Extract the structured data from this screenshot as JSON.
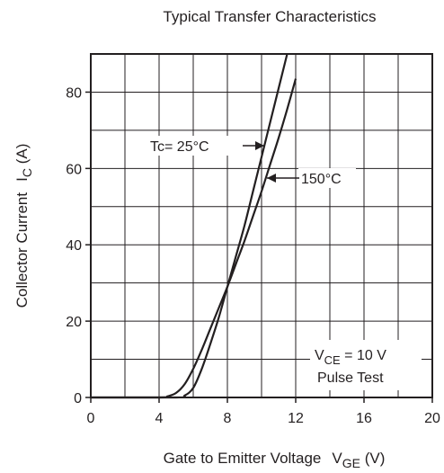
{
  "chart_data": {
    "type": "line",
    "title": "Typical Transfer Characteristics",
    "xlabel": {
      "main": "Gate to Emitter Voltage",
      "sym": "V",
      "sub": "GE",
      "unit": " (V)"
    },
    "ylabel": {
      "main": "Collector Current",
      "sym": "I",
      "sub": "C",
      "unit": " (A)"
    },
    "xlim": [
      0,
      20
    ],
    "ylim": [
      0,
      90
    ],
    "xticks": [
      0,
      4,
      8,
      12,
      16,
      20
    ],
    "yticks": [
      0,
      20,
      40,
      60,
      80
    ],
    "grid": true,
    "series": [
      {
        "name": "Tc= 25°C",
        "x": [
          5.0,
          5.5,
          6.0,
          6.5,
          7.0,
          7.5,
          8.0,
          8.5,
          9.0,
          9.5,
          10.0,
          10.5,
          11.0,
          11.5
        ],
        "y": [
          0,
          0.5,
          2.5,
          7.5,
          14,
          21,
          29,
          37,
          45,
          54,
          63,
          72,
          81,
          90
        ]
      },
      {
        "name": "150°C",
        "x": [
          4.0,
          4.5,
          5.0,
          5.5,
          6.0,
          6.5,
          7.0,
          7.5,
          8.0,
          8.5,
          9.0,
          9.5,
          10.0,
          10.5,
          11.0,
          11.5,
          12.0
        ],
        "y": [
          0,
          0.3,
          1.2,
          3.5,
          7.5,
          12.5,
          18,
          23.5,
          29,
          35,
          41,
          47.5,
          54,
          61,
          68,
          75.5,
          83.5
        ]
      }
    ],
    "annotations": {
      "series1_label": "Tc= 25°C",
      "series2_label": "150°C",
      "test_cond_sym": "V",
      "test_cond_sub": "CE",
      "test_cond_value": " = 10 V",
      "test_cond_line2": "Pulse Test"
    }
  }
}
